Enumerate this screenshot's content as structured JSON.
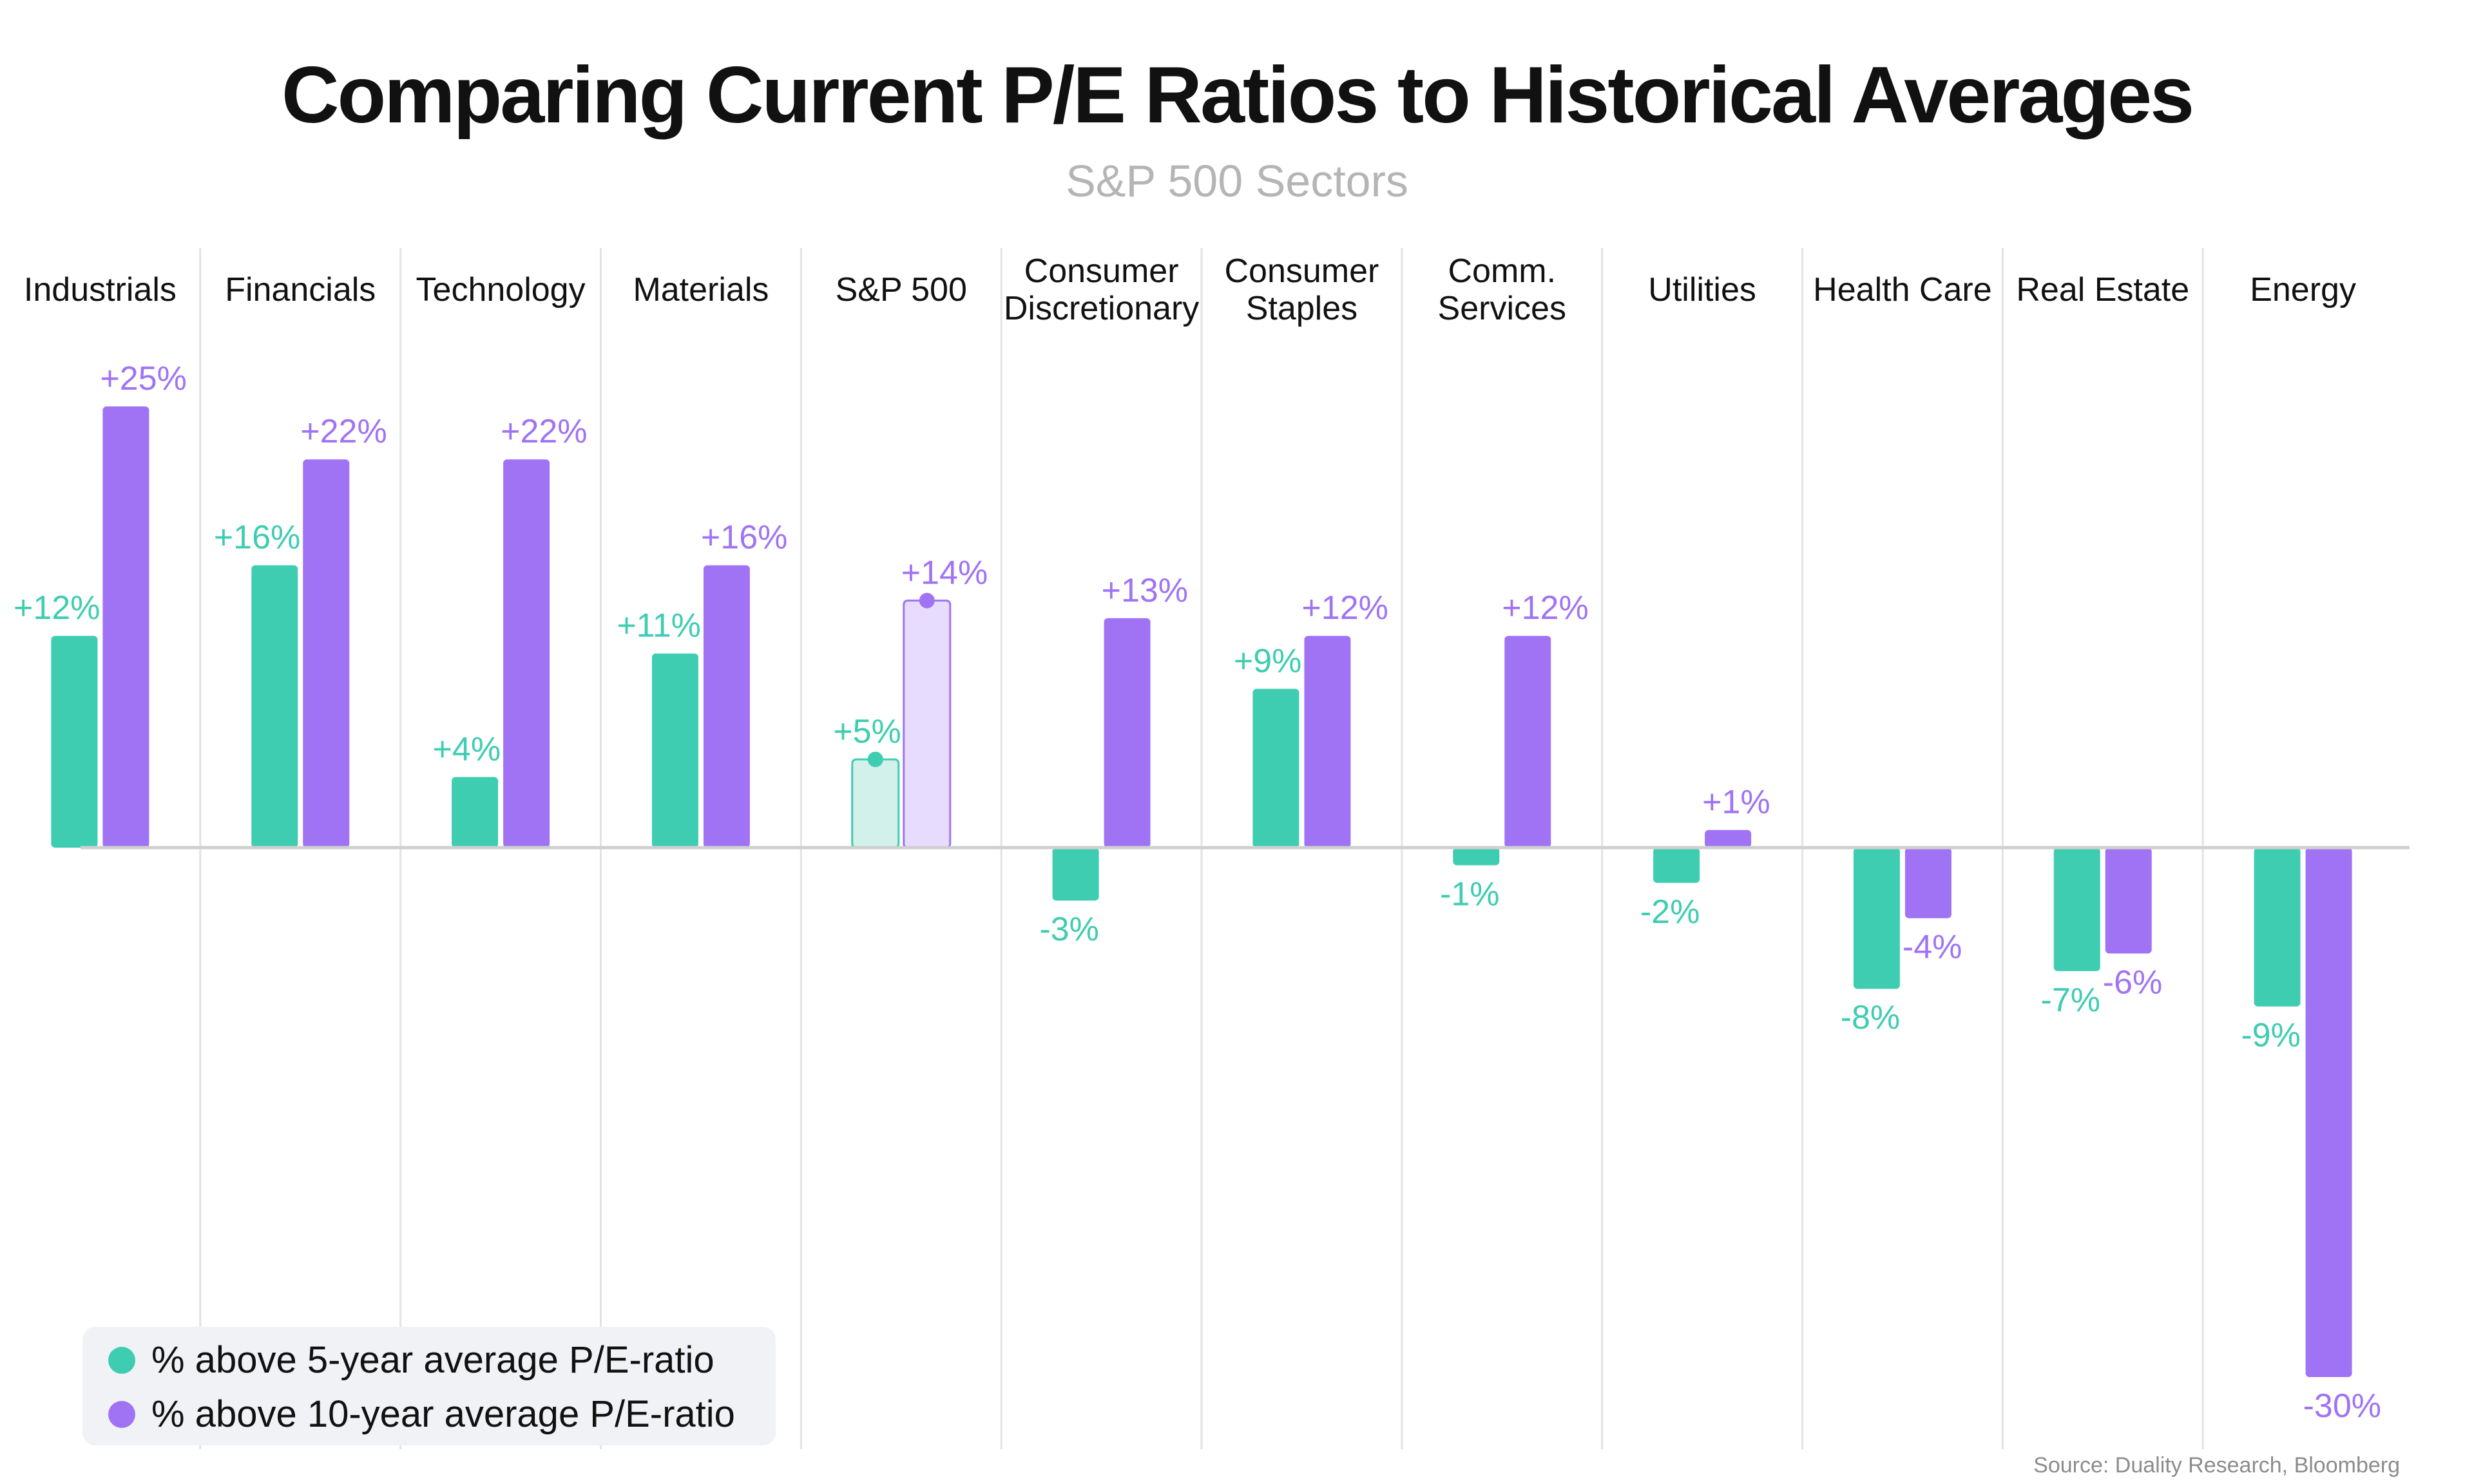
{
  "title": "Comparing Current P/E Ratios to Historical Averages",
  "subtitle": "S&P 500 Sectors",
  "source": "Source: Duality Research, Bloomberg",
  "colors": {
    "five_year": "#3ecdb1",
    "ten_year": "#a073f5",
    "five_year_highlight": "#d2f1eb",
    "ten_year_highlight": "#e7dcfd",
    "subtitle": "#b5b5b5",
    "divider": "#e3e3e3",
    "baseline": "#cfcfcf",
    "legend_bg": "#f1f2f5",
    "source": "#8c8c8c"
  },
  "legend": [
    {
      "label": "% above 5-year average P/E-ratio",
      "series": "five_year"
    },
    {
      "label": "% above 10-year average P/E-ratio",
      "series": "ten_year"
    }
  ],
  "chart_data": {
    "type": "bar",
    "title": "Comparing Current P/E Ratios to Historical Averages",
    "subtitle": "S&P 500 Sectors",
    "categories": [
      [
        "Industrials"
      ],
      [
        "Financials"
      ],
      [
        "Technology"
      ],
      [
        "Materials"
      ],
      [
        "S&P 500"
      ],
      [
        "Consumer",
        "Discretionary"
      ],
      [
        "Consumer",
        "Staples"
      ],
      [
        "Comm.",
        "Services"
      ],
      [
        "Utilities"
      ],
      [
        "Health Care"
      ],
      [
        "Real Estate"
      ],
      [
        "Energy"
      ]
    ],
    "highlight_category": 4,
    "series": [
      {
        "name": "% above 5-year average P/E-ratio",
        "key": "five_year",
        "values": [
          12,
          16,
          4,
          11,
          5,
          -3,
          9,
          -1,
          -2,
          -8,
          -7,
          -9
        ],
        "labels": [
          "+12%",
          "+16%",
          "+4%",
          "+11%",
          "+5%",
          "-3%",
          "+9%",
          "-1%",
          "-2%",
          "-8%",
          "-7%",
          "-9%"
        ]
      },
      {
        "name": "% above 10-year average P/E-ratio",
        "key": "ten_year",
        "values": [
          25,
          22,
          22,
          16,
          14,
          13,
          12,
          12,
          1,
          -4,
          -6,
          -30
        ],
        "labels": [
          "+25%",
          "+22%",
          "+22%",
          "+16%",
          "+14%",
          "+13%",
          "+12%",
          "+12%",
          "+1%",
          "-4%",
          "-6%",
          "-30%"
        ]
      }
    ],
    "ylim": [
      -30,
      25
    ],
    "grid": false,
    "legend_position": "bottom-left"
  }
}
